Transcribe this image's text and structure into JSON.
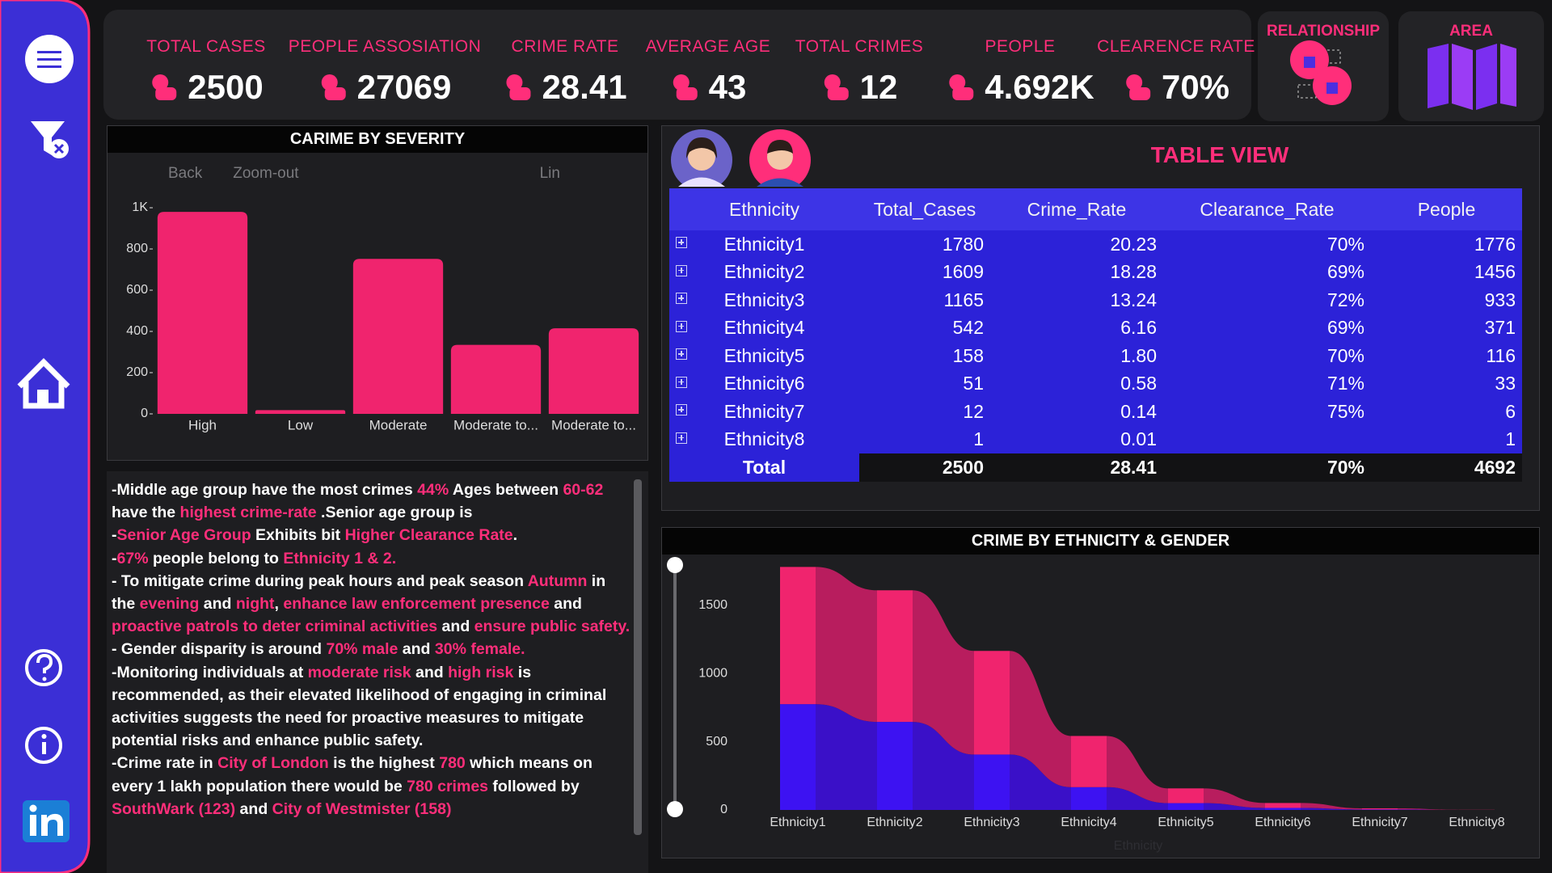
{
  "kpis": [
    {
      "label": "TOTAL CASES",
      "value": "2500"
    },
    {
      "label": "PEOPLE ASSOSIATION",
      "value": "27069"
    },
    {
      "label": "CRIME RATE",
      "value": "28.41"
    },
    {
      "label": "AVERAGE AGE",
      "value": "43"
    },
    {
      "label": "TOTAL CRIMES",
      "value": "12"
    },
    {
      "label": "PEOPLE",
      "value": "4.692K"
    },
    {
      "label": "CLEARENCE RATE",
      "value": "70%"
    }
  ],
  "nav_buttons": [
    "RELATIONSHIP",
    "AREA"
  ],
  "bar_toolbar": [
    "Back",
    "Zoom-out",
    "Lin"
  ],
  "table": {
    "title": "TABLE VIEW",
    "columns": [
      "Ethnicity",
      "Total_Cases",
      "Crime_Rate",
      "Clearance_Rate",
      "People"
    ],
    "rows": [
      [
        "Ethnicity1",
        "1780",
        "20.23",
        "70%",
        "1776"
      ],
      [
        "Ethnicity2",
        "1609",
        "18.28",
        "69%",
        "1456"
      ],
      [
        "Ethnicity3",
        "1165",
        "13.24",
        "72%",
        "933"
      ],
      [
        "Ethnicity4",
        "542",
        "6.16",
        "69%",
        "371"
      ],
      [
        "Ethnicity5",
        "158",
        "1.80",
        "70%",
        "116"
      ],
      [
        "Ethnicity6",
        "51",
        "0.58",
        "71%",
        "33"
      ],
      [
        "Ethnicity7",
        "12",
        "0.14",
        "75%",
        "6"
      ],
      [
        "Ethnicity8",
        "1",
        "0.01",
        null,
        "1"
      ]
    ],
    "total": [
      "Total",
      "2500",
      "28.41",
      "70%",
      "4692"
    ]
  },
  "notes": [
    [
      "-Middle age group have the most crimes ",
      {
        "text": "44%",
        "accent": true
      },
      " Ages between ",
      {
        "text": "60-62",
        "accent": true
      },
      " have the ",
      {
        "text": "highest crime-rate",
        "accent": true
      },
      " .Senior age group is"
    ],
    [
      "-",
      {
        "text": "Senior Age Group",
        "accent": true
      },
      " Exhibits bit ",
      {
        "text": "Higher Clearance Rate",
        "accent": true
      },
      "."
    ],
    [
      "-",
      {
        "text": "67%",
        "accent": true
      },
      " people belong to ",
      {
        "text": "Ethnicity 1 & 2.",
        "accent": true
      }
    ],
    [
      "- To mitigate crime during peak hours and peak season ",
      {
        "text": "Autumn",
        "accent": true
      },
      " in the ",
      {
        "text": "evening",
        "accent": true
      },
      " and ",
      {
        "text": "night",
        "accent": true
      },
      ", ",
      {
        "text": "enhance law enforcement presence",
        "accent": true
      },
      " and ",
      {
        "text": "proactive patrols to deter criminal activities",
        "accent": true
      },
      " and ",
      {
        "text": "ensure public safety.",
        "accent": true
      }
    ],
    [
      "- Gender disparity is around ",
      {
        "text": "70% male",
        "accent": true
      },
      " and ",
      {
        "text": "30% female.",
        "accent": true
      }
    ],
    [
      "-Monitoring individuals at ",
      {
        "text": "moderate risk",
        "accent": true
      },
      " and ",
      {
        "text": "high risk",
        "accent": true
      },
      " is recommended, as their elevated likelihood of engaging in criminal activities suggests the need for proactive measures to mitigate potential risks and enhance public safety."
    ],
    [
      "-Crime rate in ",
      {
        "text": "City of London",
        "accent": true
      },
      " is the highest ",
      {
        "text": "780",
        "accent": true
      },
      " which means on every 1 lakh population there would be ",
      {
        "text": "780 crimes",
        "accent": true
      },
      " followed by ",
      {
        "text": "SouthWark (123)",
        "accent": true
      },
      " and ",
      {
        "text": "City of Westmister (158)",
        "accent": true
      }
    ]
  ],
  "chart_data": [
    {
      "type": "bar",
      "title": "CARIME BY SEVERITY",
      "categories": [
        "High",
        "Low",
        "Moderate",
        "Moderate to...",
        "Moderate to..."
      ],
      "values": [
        980,
        18,
        752,
        335,
        415
      ],
      "color": "#f0246e",
      "ylim": [
        0,
        1000
      ],
      "yticks": [
        0,
        200,
        400,
        600,
        800,
        {
          "value": 1000,
          "label": "1K"
        }
      ]
    },
    {
      "type": "ribbon",
      "title": "CRIME BY ETHNICITY & GENDER",
      "x_label": "Ethnicity",
      "categories": [
        "Ethnicity1",
        "Ethnicity2",
        "Ethnicity3",
        "Ethnicity4",
        "Ethnicity5",
        "Ethnicity6",
        "Ethnicity7",
        "Ethnicity8"
      ],
      "series": [
        {
          "color": "#3d12f2",
          "ribbon_color": "#3a10c8",
          "values": [
            775,
            645,
            406,
            167,
            50,
            15,
            4,
            0
          ]
        },
        {
          "color": "#f0246e",
          "ribbon_color": "#b81d5e",
          "values": [
            1005,
            964,
            759,
            375,
            108,
            36,
            8,
            1
          ]
        }
      ],
      "ylim": [
        0,
        1800
      ],
      "yticks": [
        0,
        500,
        1000,
        1500
      ]
    }
  ]
}
